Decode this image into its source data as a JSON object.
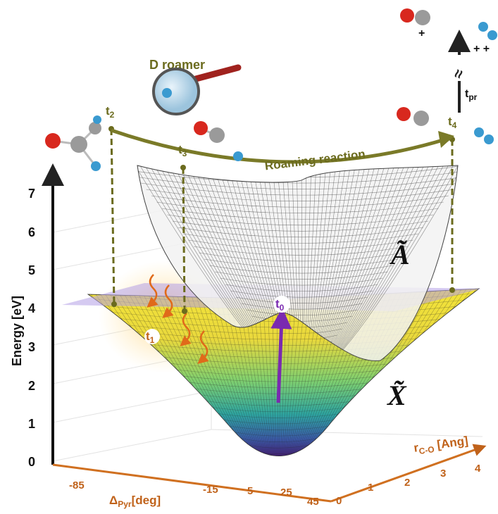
{
  "annotations": {
    "d_roamer": "D roamer",
    "roaming_reaction": "Roaming reaction",
    "break": "≈"
  },
  "times": [
    {
      "base": "t",
      "sub": "0"
    },
    {
      "base": "t",
      "sub": "1"
    },
    {
      "base": "t",
      "sub": "2"
    },
    {
      "base": "t",
      "sub": "3"
    },
    {
      "base": "t",
      "sub": "4"
    },
    {
      "base": "t",
      "sub": "pr"
    }
  ],
  "states": [
    "Ã",
    "X̃"
  ],
  "charges": [
    "+",
    "+ +"
  ],
  "energy_axis": {
    "label": "Energy [eV]",
    "ticks": [
      "0",
      "1",
      "2",
      "3",
      "4",
      "5",
      "6",
      "7"
    ]
  },
  "pyr_axis": {
    "label": {
      "base": "Δ",
      "sub": "Pyr",
      "unit": "[deg]"
    },
    "ticks": [
      "-85",
      "-15",
      "5",
      "25",
      "45"
    ]
  },
  "rco_axis": {
    "label": {
      "base": "r",
      "sub": "C-O",
      "unit": " [Ang]"
    },
    "ticks": [
      "0",
      "1",
      "2",
      "3",
      "4"
    ]
  }
}
